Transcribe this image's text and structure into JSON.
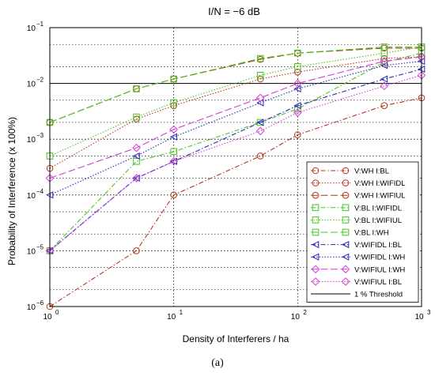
{
  "figure": {
    "caption": "(a)"
  },
  "chart_data": {
    "type": "line",
    "title": "I/N = −6 dB",
    "xlabel": "Density of Interferers / ha",
    "ylabel": "Probability of Interference (x 100%)",
    "x_scale": "log",
    "y_scale": "log",
    "xlim": [
      1,
      1000
    ],
    "ylim": [
      1e-06,
      0.1
    ],
    "x_ticks": [
      {
        "base": "10",
        "exp": "0"
      },
      {
        "base": "10",
        "exp": "1"
      },
      {
        "base": "10",
        "exp": "2"
      },
      {
        "base": "10",
        "exp": "3"
      }
    ],
    "y_ticks": [
      {
        "base": "10",
        "exp": "−6"
      },
      {
        "base": "10",
        "exp": "−5"
      },
      {
        "base": "10",
        "exp": "−4"
      },
      {
        "base": "10",
        "exp": "−3"
      },
      {
        "base": "10",
        "exp": "−2"
      },
      {
        "base": "10",
        "exp": "−1"
      }
    ],
    "grid": true,
    "legend_position": "lower-right",
    "x": [
      1,
      5,
      10,
      50,
      100,
      500,
      1000
    ],
    "series": [
      {
        "name": "V:WH I:BL",
        "color": "#b5341e",
        "marker": "circle",
        "dash": "dashdot",
        "values": [
          1e-06,
          1e-05,
          0.0001,
          0.0005,
          0.0012,
          0.004,
          0.0055
        ]
      },
      {
        "name": "V:WH I:WIFIDL",
        "color": "#b5341e",
        "marker": "circle",
        "dash": "dotted",
        "values": [
          0.0003,
          0.0023,
          0.004,
          0.012,
          0.016,
          0.028,
          0.03
        ]
      },
      {
        "name": "V:WH I:WIFIUL",
        "color": "#b5341e",
        "marker": "circle",
        "dash": "longdash",
        "values": [
          0.002,
          0.008,
          0.012,
          0.027,
          0.035,
          0.043,
          0.043
        ]
      },
      {
        "name": "V:BL I:WIFIDL",
        "color": "#4ac41e",
        "marker": "square",
        "dash": "dashdot",
        "values": [
          1e-05,
          0.0004,
          0.0006,
          0.002,
          0.0035,
          0.024,
          0.035
        ]
      },
      {
        "name": "V:BL I:WIFIUL",
        "color": "#4ac41e",
        "marker": "square",
        "dash": "dotted",
        "values": [
          0.0005,
          0.0025,
          0.0045,
          0.014,
          0.02,
          0.035,
          0.045
        ]
      },
      {
        "name": "V:BL I:WH",
        "color": "#4ac41e",
        "marker": "square",
        "dash": "longdash",
        "values": [
          0.002,
          0.008,
          0.012,
          0.028,
          0.035,
          0.045,
          0.045
        ]
      },
      {
        "name": "V:WIFIDL I:BL",
        "color": "#2828b4",
        "marker": "triangle-left",
        "dash": "dashdot",
        "values": [
          1e-05,
          0.0002,
          0.0004,
          0.002,
          0.004,
          0.012,
          0.018
        ]
      },
      {
        "name": "V:WIFIDL I:WH",
        "color": "#2828b4",
        "marker": "triangle-left",
        "dash": "dotted",
        "values": [
          0.0001,
          0.0005,
          0.0011,
          0.0045,
          0.008,
          0.021,
          0.025
        ]
      },
      {
        "name": "V:WIFIUL I:WH",
        "color": "#d43cd4",
        "marker": "diamond",
        "dash": "longdash",
        "values": [
          0.0002,
          0.0007,
          0.0015,
          0.0055,
          0.01,
          0.025,
          0.03
        ]
      },
      {
        "name": "V:WIFIUL I:BL",
        "color": "#d43cd4",
        "marker": "diamond",
        "dash": "dotted",
        "values": [
          1e-05,
          0.0002,
          0.0004,
          0.0014,
          0.003,
          0.009,
          0.014
        ]
      }
    ],
    "threshold": {
      "name": "1 % Threshold",
      "value": 0.01,
      "color": "#000000"
    }
  }
}
